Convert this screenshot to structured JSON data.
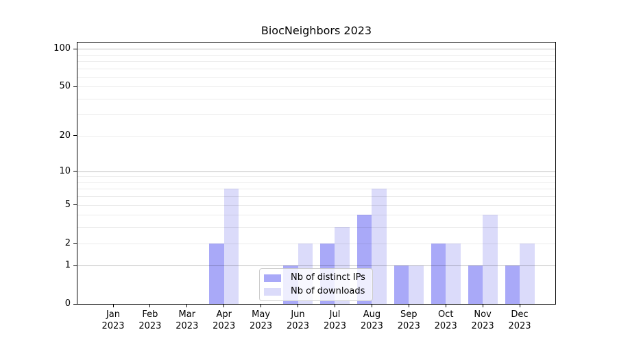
{
  "chart_data": {
    "type": "bar",
    "title": "BiocNeighbors 2023",
    "categories": [
      "Jan",
      "Feb",
      "Mar",
      "Apr",
      "May",
      "Jun",
      "Jul",
      "Aug",
      "Sep",
      "Oct",
      "Nov",
      "Dec"
    ],
    "year_label": "2023",
    "series": [
      {
        "name": "Nb of distinct IPs",
        "color": "#a9a9f8",
        "values": [
          0,
          0,
          0,
          2,
          0,
          1,
          2,
          4,
          1,
          2,
          1,
          1
        ]
      },
      {
        "name": "Nb of downloads",
        "color": "#dbdbfa",
        "values": [
          0,
          0,
          0,
          7,
          0,
          2,
          3,
          7,
          1,
          2,
          4,
          2
        ]
      }
    ],
    "y_axis": {
      "scale": "log1p",
      "ylim": [
        0,
        112
      ],
      "tick_values": [
        0,
        1,
        2,
        5,
        10,
        20,
        50,
        100
      ],
      "grid_minor_values": [
        2,
        3,
        4,
        5,
        6,
        7,
        8,
        9,
        20,
        30,
        40,
        50,
        60,
        70,
        80,
        90
      ],
      "grid_major_values": [
        1,
        10,
        100
      ]
    },
    "legend_position": "lower center",
    "grid": "horizontal-on"
  }
}
